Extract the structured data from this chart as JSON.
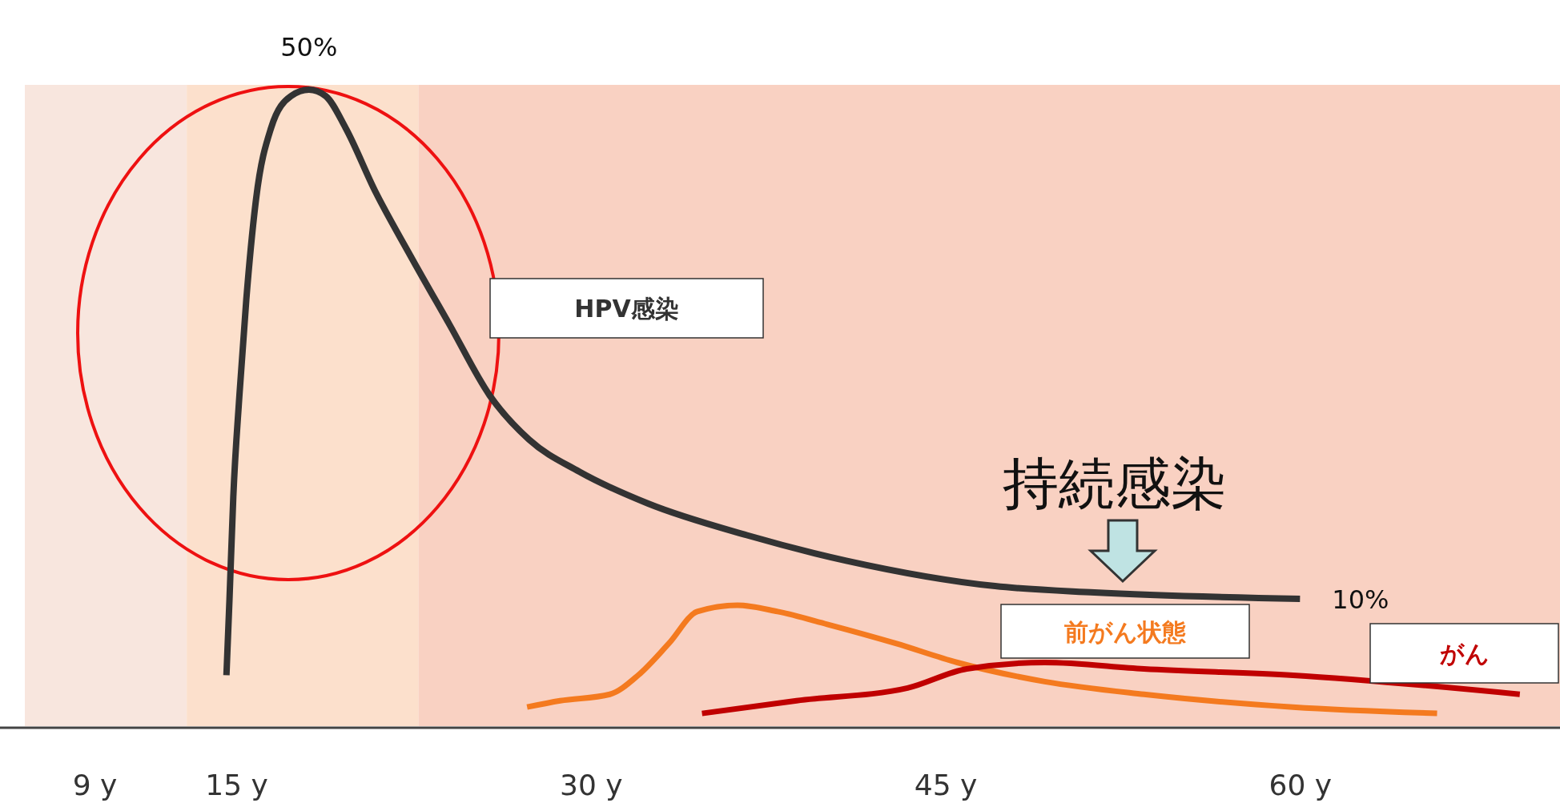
{
  "chart_data": {
    "type": "line",
    "legend": false,
    "tick_labels": "x",
    "xlim": [
      5,
      71
    ],
    "xticks": [
      {
        "value": 9,
        "label": "9 y"
      },
      {
        "value": 15,
        "label": "15 y"
      },
      {
        "value": 30,
        "label": "30 y"
      },
      {
        "value": 45,
        "label": "45 y"
      },
      {
        "value": 60,
        "label": "60 y"
      }
    ],
    "bands": [
      {
        "axis": "x",
        "from": 6.05,
        "to": 12.9,
        "color": "#f8e6de"
      },
      {
        "axis": "x",
        "from": 12.9,
        "to": 22.7,
        "color": "#fce0cc"
      },
      {
        "axis": "x",
        "from": 22.7,
        "to": 71,
        "color": "#f9d1c2"
      }
    ],
    "series": [
      {
        "name": "HPV感染",
        "color": "#333333",
        "x": [
          14.58,
          14.71,
          14.87,
          15.13,
          15.42,
          15.84,
          16.47,
          17.31,
          18.07,
          18.78,
          19.62,
          20.88,
          22.35,
          24.03,
          25.71,
          27.39,
          29.5,
          32.4,
          36.6,
          40.8,
          47.1,
          51.3,
          60.0
        ],
        "values": [
          4,
          10,
          18,
          26,
          33.5,
          41.5,
          47,
          49.5,
          50,
          49.5,
          47,
          42,
          37,
          31.5,
          26,
          22.5,
          20,
          17.5,
          15,
          13,
          11,
          10.5,
          10
        ],
        "value_labels": [
          null,
          null,
          null,
          null,
          null,
          null,
          null,
          null,
          "50%",
          null,
          null,
          null,
          null,
          null,
          null,
          null,
          null,
          null,
          null,
          null,
          null,
          null,
          "10%"
        ]
      },
      {
        "name": "前がん状態",
        "color": "#f47a1f",
        "x": [
          27.3,
          28.7,
          30.8,
          32.0,
          33.3,
          34.5,
          36.2,
          37.9,
          40.0,
          42.9,
          45.5,
          49.2,
          53.4,
          59.7,
          65.8
        ],
        "values": [
          1.5,
          2,
          2.5,
          4,
          6.5,
          9,
          9.5,
          9,
          8,
          6.5,
          5,
          3.5,
          2.5,
          1.5,
          1
        ]
      },
      {
        "name": "がん",
        "color": "#c00000",
        "x": [
          34.7,
          38.7,
          43.4,
          45.9,
          49.2,
          53.4,
          59.7,
          69.3
        ],
        "values": [
          1,
          2,
          3,
          4.5,
          5,
          4.5,
          4,
          2.5
        ]
      }
    ],
    "annotations": [
      {
        "text": "持続感染",
        "x": 52.5,
        "y": 10.5
      }
    ]
  }
}
